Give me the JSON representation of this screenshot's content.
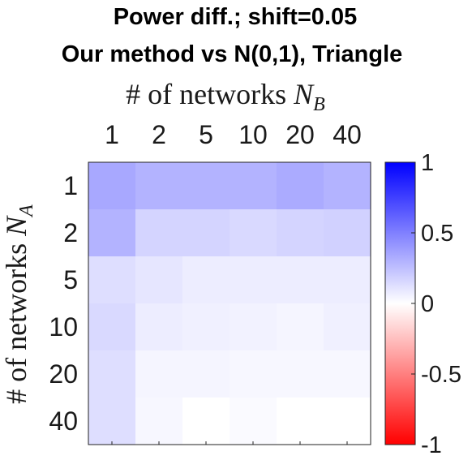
{
  "chart_data": {
    "type": "heatmap",
    "title": "Power diff.; shift=0.05",
    "subtitle": "Our method vs N(0,1), Triangle",
    "xlabel": "# of networks",
    "xlabel_sub": "B",
    "ylabel": "# of networks",
    "ylabel_sub": "A",
    "x_axis_position": "top",
    "x_categories": [
      "1",
      "2",
      "5",
      "10",
      "20",
      "40"
    ],
    "y_categories": [
      "1",
      "2",
      "5",
      "10",
      "20",
      "40"
    ],
    "values": [
      [
        0.34,
        0.3,
        0.3,
        0.3,
        0.33,
        0.3
      ],
      [
        0.3,
        0.17,
        0.17,
        0.15,
        0.17,
        0.18
      ],
      [
        0.13,
        0.1,
        0.07,
        0.07,
        0.07,
        0.07
      ],
      [
        0.15,
        0.07,
        0.06,
        0.05,
        0.04,
        0.06
      ],
      [
        0.13,
        0.04,
        0.04,
        0.03,
        0.03,
        0.03
      ],
      [
        0.13,
        0.03,
        0.0,
        0.02,
        0.0,
        0.0
      ]
    ],
    "colorbar": {
      "range": [
        -1,
        1
      ],
      "ticks": [
        1,
        0.5,
        0,
        -0.5,
        -1
      ],
      "tick_labels": [
        "1",
        "0.5",
        "0",
        "-0.5",
        "-1"
      ],
      "colors": {
        "high": "#0000ff",
        "mid": "#ffffff",
        "low": "#ff0000"
      }
    },
    "grid": false
  }
}
